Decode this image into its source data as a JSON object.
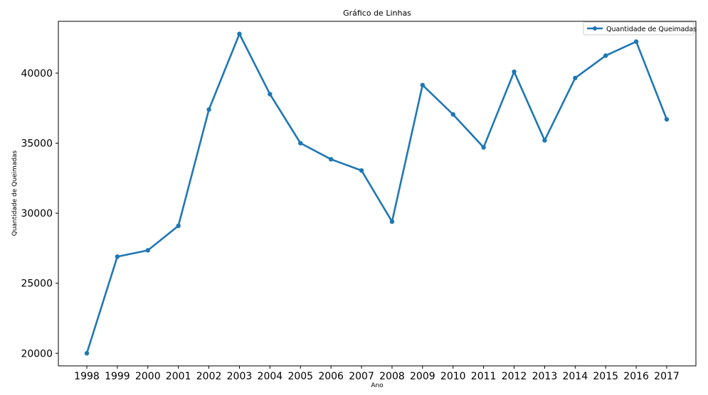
{
  "chart_data": {
    "type": "line",
    "title": "Gráfico de Linhas",
    "xlabel": "Ano",
    "ylabel": "Quantidade de Queimadas",
    "categories": [
      "1998",
      "1999",
      "2000",
      "2001",
      "2002",
      "2003",
      "2004",
      "2005",
      "2006",
      "2007",
      "2008",
      "2009",
      "2010",
      "2011",
      "2012",
      "2013",
      "2014",
      "2015",
      "2016",
      "2017"
    ],
    "series": [
      {
        "name": "Quantidade de Queimadas",
        "color": "#1f77b4",
        "values": [
          20000,
          26900,
          27350,
          29100,
          37400,
          42800,
          38500,
          35000,
          33850,
          33050,
          29400,
          39150,
          37050,
          34700,
          40100,
          35200,
          39650,
          41250,
          42250,
          36700
        ]
      }
    ],
    "ylim": [
      19100,
      43700
    ],
    "yticks": [
      20000,
      25000,
      30000,
      35000,
      40000
    ],
    "grid": false,
    "legend_position": "top-right"
  }
}
